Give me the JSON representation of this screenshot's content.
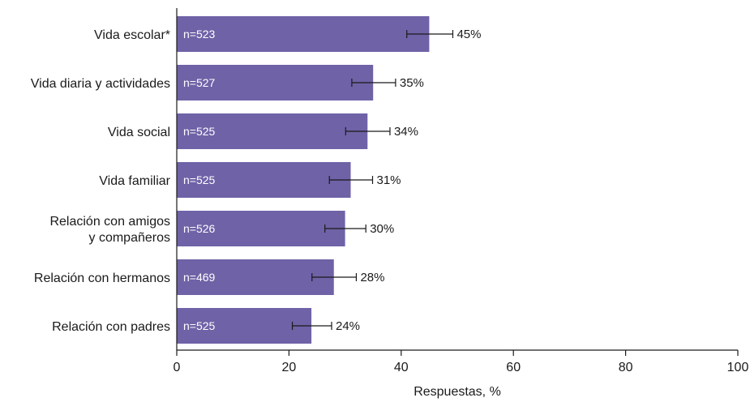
{
  "chart_data": {
    "type": "bar",
    "orientation": "horizontal",
    "categories": [
      "Vida escolar*",
      "Vida diaria y actividades",
      "Vida social",
      "Vida familiar",
      "Relación con amigos y compañeros",
      "Relación con hermanos",
      "Relación con padres"
    ],
    "category_lines": [
      [
        "Vida escolar*"
      ],
      [
        "Vida diaria y actividades"
      ],
      [
        "Vida social"
      ],
      [
        "Vida familiar"
      ],
      [
        "Relación con amigos",
        "y compañeros"
      ],
      [
        "Relación con hermanos"
      ],
      [
        "Relación con padres"
      ]
    ],
    "values": [
      45,
      35,
      34,
      31,
      30,
      28,
      24
    ],
    "value_labels": [
      "45%",
      "35%",
      "34%",
      "31%",
      "30%",
      "28%",
      "24%"
    ],
    "n_labels": [
      "n=523",
      "n=527",
      "n=525",
      "n=525",
      "n=526",
      "n=469",
      "n=525"
    ],
    "error_low": [
      41,
      31.2,
      30.1,
      27.2,
      26.4,
      24.1,
      20.6
    ],
    "error_high": [
      49.2,
      39,
      38,
      34.9,
      33.7,
      32,
      27.6
    ],
    "xlabel": "Respuestas, %",
    "ylabel": "",
    "xlim": [
      0,
      100
    ],
    "xticks": [
      0,
      20,
      40,
      60,
      80,
      100
    ],
    "grid": false,
    "bar_color": "#6f62a7"
  }
}
